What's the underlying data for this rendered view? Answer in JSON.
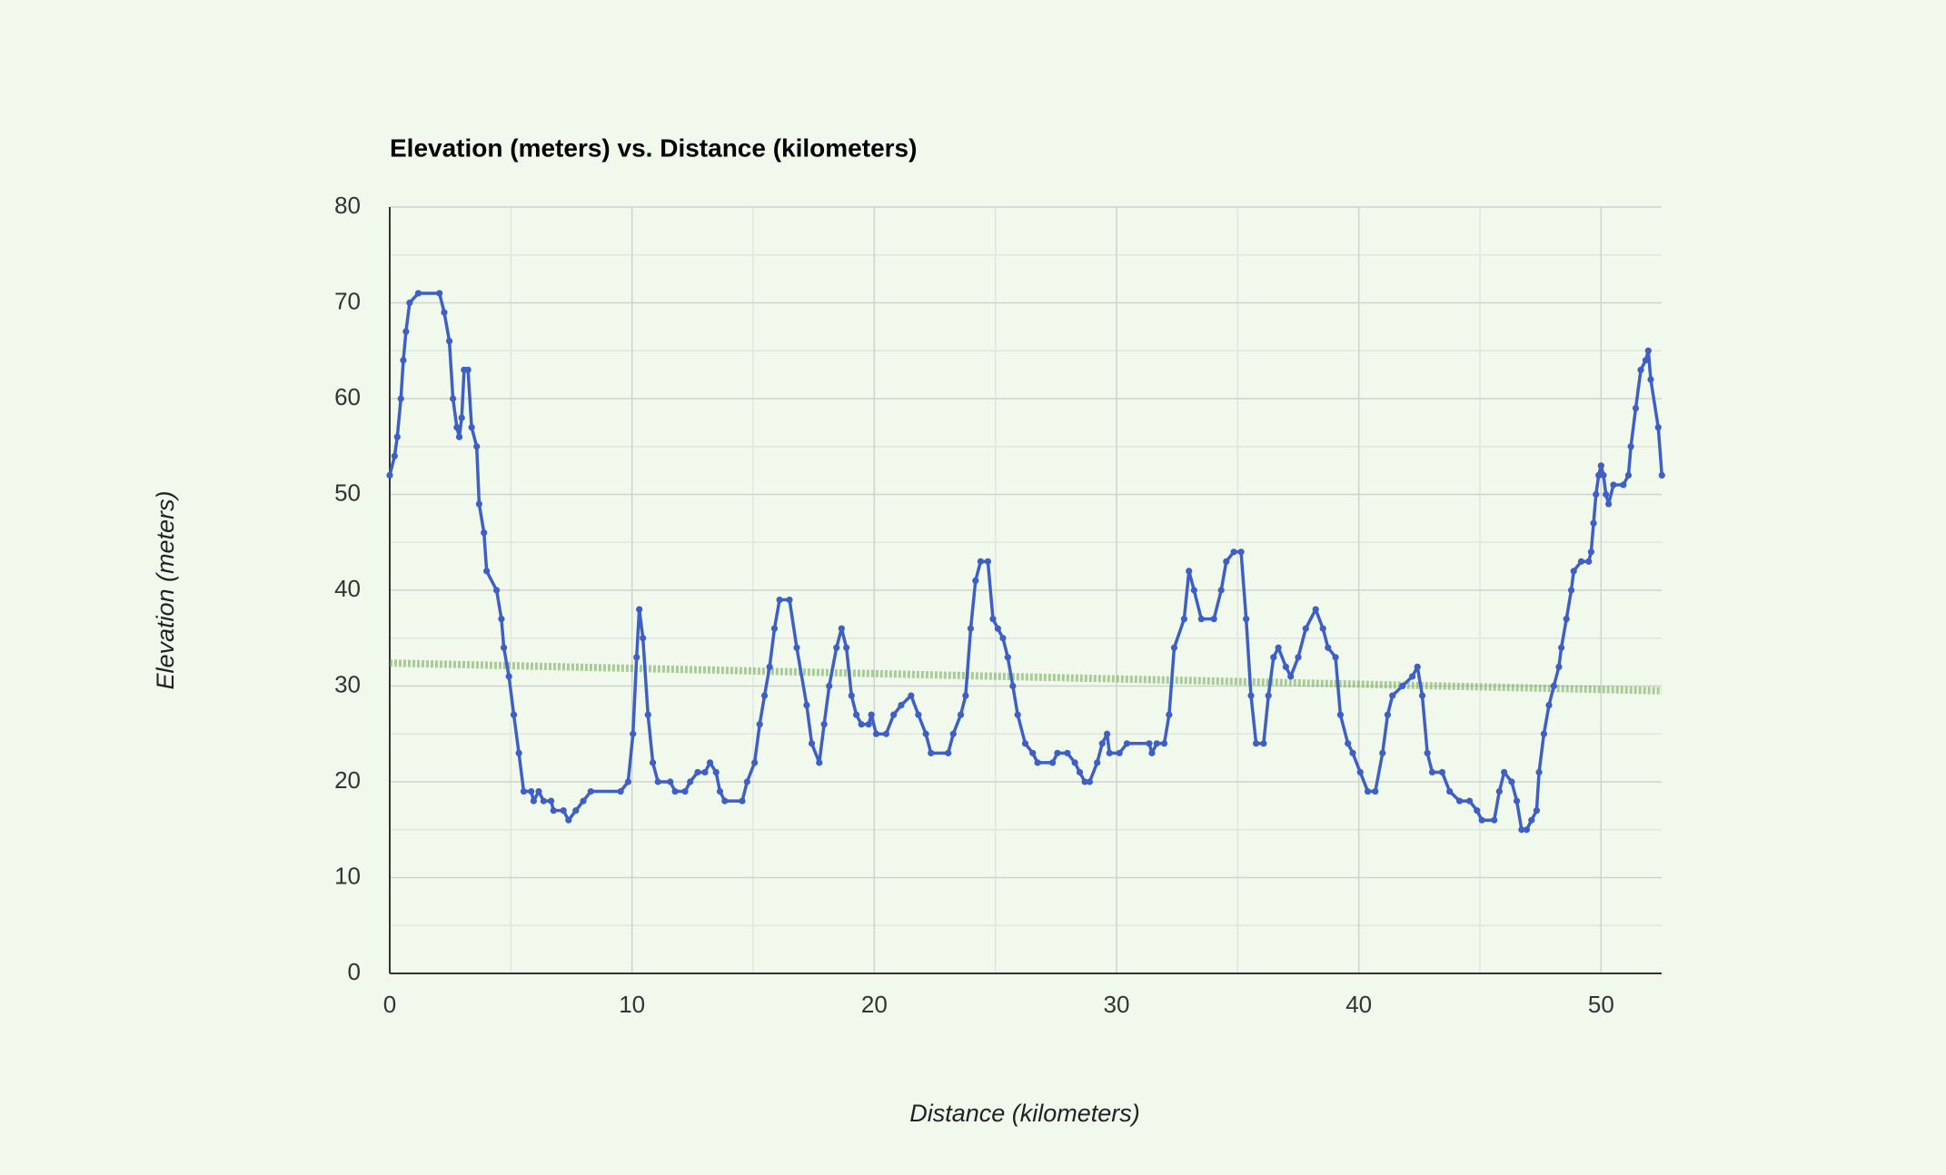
{
  "chart_data": {
    "type": "line",
    "title": "Elevation (meters) vs. Distance (kilometers)",
    "x_label": "Distance (kilometers)",
    "y_label": "Elevation (meters)",
    "xlim": [
      0,
      52.5
    ],
    "ylim": [
      0,
      80
    ],
    "xticks": [
      0,
      10,
      20,
      30,
      40,
      50
    ],
    "yticks": [
      0,
      10,
      20,
      30,
      40,
      50,
      60,
      70,
      80
    ],
    "grid": true,
    "minor_grid": true,
    "series": [
      {
        "color": "#3d5fc6",
        "x": [
          0,
          0.2,
          0.31,
          0.46,
          0.56,
          0.67,
          0.82,
          1.18,
          2.05,
          2.25,
          2.46,
          2.61,
          2.77,
          2.87,
          2.97,
          3.07,
          3.23,
          3.38,
          3.59,
          3.69,
          3.89,
          4.0,
          4.41,
          4.61,
          4.71,
          4.92,
          5.12,
          5.33,
          5.53,
          5.84,
          5.94,
          6.15,
          6.35,
          6.66,
          6.76,
          7.17,
          7.38,
          7.68,
          7.99,
          8.3,
          9.53,
          9.84,
          10.04,
          10.19,
          10.3,
          10.45,
          10.66,
          10.86,
          11.07,
          11.58,
          11.78,
          12.19,
          12.4,
          12.71,
          13.01,
          13.22,
          13.47,
          13.63,
          13.83,
          14.55,
          14.75,
          15.06,
          15.27,
          15.47,
          15.68,
          15.88,
          16.09,
          16.5,
          16.8,
          17.21,
          17.42,
          17.73,
          17.93,
          18.14,
          18.44,
          18.65,
          18.85,
          19.06,
          19.26,
          19.47,
          19.77,
          19.88,
          20.08,
          20.49,
          20.8,
          21.11,
          21.52,
          21.82,
          22.13,
          22.34,
          23.05,
          23.26,
          23.57,
          23.77,
          23.98,
          24.18,
          24.39,
          24.69,
          24.9,
          25.1,
          25.31,
          25.51,
          25.72,
          25.92,
          26.23,
          26.54,
          26.74,
          27.36,
          27.56,
          27.97,
          28.28,
          28.48,
          28.69,
          28.89,
          29.2,
          29.41,
          29.61,
          29.71,
          30.12,
          30.43,
          31.35,
          31.46,
          31.66,
          31.97,
          32.17,
          32.38,
          32.79,
          32.99,
          33.2,
          33.5,
          34.02,
          34.32,
          34.53,
          34.84,
          35.14,
          35.35,
          35.55,
          35.76,
          36.07,
          36.27,
          36.48,
          36.68,
          36.99,
          37.19,
          37.5,
          37.81,
          38.22,
          38.52,
          38.73,
          39.04,
          39.24,
          39.55,
          39.75,
          40.06,
          40.37,
          40.68,
          40.98,
          41.19,
          41.39,
          41.8,
          42.21,
          42.42,
          42.62,
          42.83,
          43.03,
          43.44,
          43.75,
          44.16,
          44.57,
          44.88,
          45.08,
          45.59,
          45.8,
          46.0,
          46.31,
          46.52,
          46.72,
          46.93,
          47.13,
          47.34,
          47.44,
          47.64,
          47.85,
          48.05,
          48.26,
          48.36,
          48.57,
          48.77,
          48.87,
          49.18,
          49.49,
          49.59,
          49.69,
          49.79,
          49.9,
          50.0,
          50.1,
          50.2,
          50.31,
          50.51,
          50.92,
          51.13,
          51.23,
          51.43,
          51.64,
          51.84,
          51.95,
          52.05,
          52.36,
          52.51
        ],
        "values": [
          52,
          54,
          56,
          60,
          64,
          67,
          70,
          71,
          71,
          69,
          66,
          60,
          57,
          56,
          58,
          63,
          63,
          57,
          55,
          49,
          46,
          42,
          40,
          37,
          34,
          31,
          27,
          23,
          19,
          19,
          18,
          19,
          18,
          18,
          17,
          17,
          16,
          17,
          18,
          19,
          19,
          20,
          25,
          33,
          38,
          35,
          27,
          22,
          20,
          20,
          19,
          19,
          20,
          21,
          21,
          22,
          21,
          19,
          18,
          18,
          20,
          22,
          26,
          29,
          32,
          36,
          39,
          39,
          34,
          28,
          24,
          22,
          26,
          30,
          34,
          36,
          34,
          29,
          27,
          26,
          26,
          27,
          25,
          25,
          27,
          28,
          29,
          27,
          25,
          23,
          23,
          25,
          27,
          29,
          36,
          41,
          43,
          43,
          37,
          36,
          35,
          33,
          30,
          27,
          24,
          23,
          22,
          22,
          23,
          23,
          22,
          21,
          20,
          20,
          22,
          24,
          25,
          23,
          23,
          24,
          24,
          23,
          24,
          24,
          27,
          34,
          37,
          42,
          40,
          37,
          37,
          40,
          43,
          44,
          44,
          37,
          29,
          24,
          24,
          29,
          33,
          34,
          32,
          31,
          33,
          36,
          38,
          36,
          34,
          33,
          27,
          24,
          23,
          21,
          19,
          19,
          23,
          27,
          29,
          30,
          31,
          32,
          29,
          23,
          21,
          21,
          19,
          18,
          18,
          17,
          16,
          16,
          19,
          21,
          20,
          18,
          15,
          15,
          16,
          17,
          21,
          25,
          28,
          30,
          32,
          34,
          37,
          40,
          42,
          43,
          43,
          44,
          47,
          50,
          52,
          53,
          52,
          50,
          49,
          51,
          51,
          52,
          55,
          59,
          63,
          64,
          65,
          62,
          57,
          52
        ]
      }
    ],
    "trendline": {
      "color": "#6aa84f",
      "x": [
        0,
        52.5
      ],
      "values": [
        32.4,
        29.5
      ]
    }
  }
}
